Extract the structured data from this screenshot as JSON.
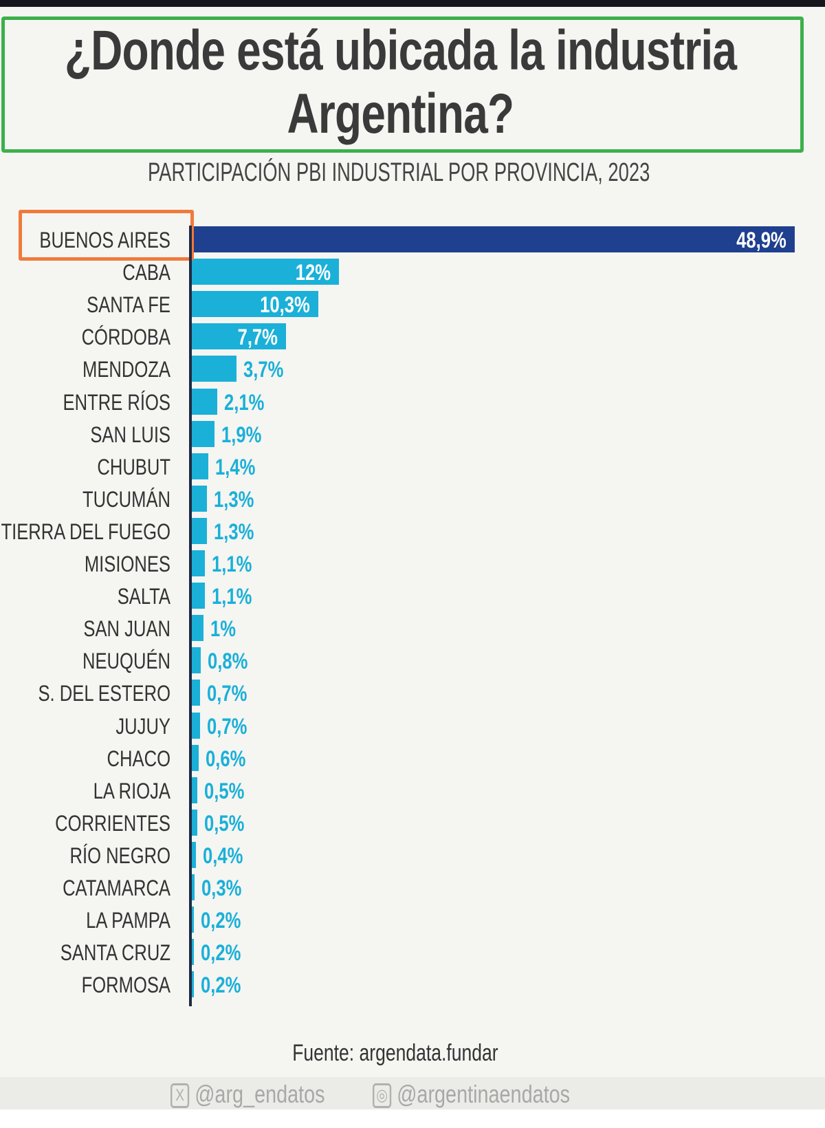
{
  "title_line1": "¿Donde está ubicada la industria",
  "title_line2": "Argentina?",
  "subtitle": "PARTICIPACIÓN PBI INDUSTRIAL POR PROVINCIA, 2023",
  "source": "Fuente: argendata.fundar",
  "social": {
    "x_handle": "@arg_endatos",
    "instagram_handle": "@argentinaendatos"
  },
  "colors": {
    "highlight_bar": "#1f3f8f",
    "bar": "#1ab0d8",
    "title_box": "#3cb04a",
    "label_box": "#f07a3c"
  },
  "chart_data": {
    "type": "bar",
    "orientation": "horizontal",
    "title": "PARTICIPACIÓN PBI INDUSTRIAL POR PROVINCIA, 2023",
    "xlabel": "",
    "ylabel": "",
    "unit": "%",
    "xlim": [
      0,
      48.9
    ],
    "categories": [
      "BUENOS AIRES",
      "CABA",
      "SANTA FE",
      "CÓRDOBA",
      "MENDOZA",
      "ENTRE RÍOS",
      "SAN LUIS",
      "CHUBUT",
      "TUCUMÁN",
      "TIERRA DEL FUEGO",
      "MISIONES",
      "SALTA",
      "SAN JUAN",
      "NEUQUÉN",
      "S. DEL ESTERO",
      "JUJUY",
      "CHACO",
      "LA RIOJA",
      "CORRIENTES",
      "RÍO NEGRO",
      "CATAMARCA",
      "LA PAMPA",
      "SANTA CRUZ",
      "FORMOSA"
    ],
    "values": [
      48.9,
      12,
      10.3,
      7.7,
      3.7,
      2.1,
      1.9,
      1.4,
      1.3,
      1.3,
      1.1,
      1.1,
      1,
      0.8,
      0.7,
      0.7,
      0.6,
      0.5,
      0.5,
      0.4,
      0.3,
      0.2,
      0.2,
      0.2
    ],
    "labels": [
      "48,9%",
      "12%",
      "10,3%",
      "7,7%",
      "3,7%",
      "2,1%",
      "1,9%",
      "1,4%",
      "1,3%",
      "1,3%",
      "1,1%",
      "1,1%",
      "1%",
      "0,8%",
      "0,7%",
      "0,7%",
      "0,6%",
      "0,5%",
      "0,5%",
      "0,4%",
      "0,3%",
      "0,2%",
      "0,2%",
      "0,2%"
    ],
    "grid": false,
    "legend": "none"
  }
}
